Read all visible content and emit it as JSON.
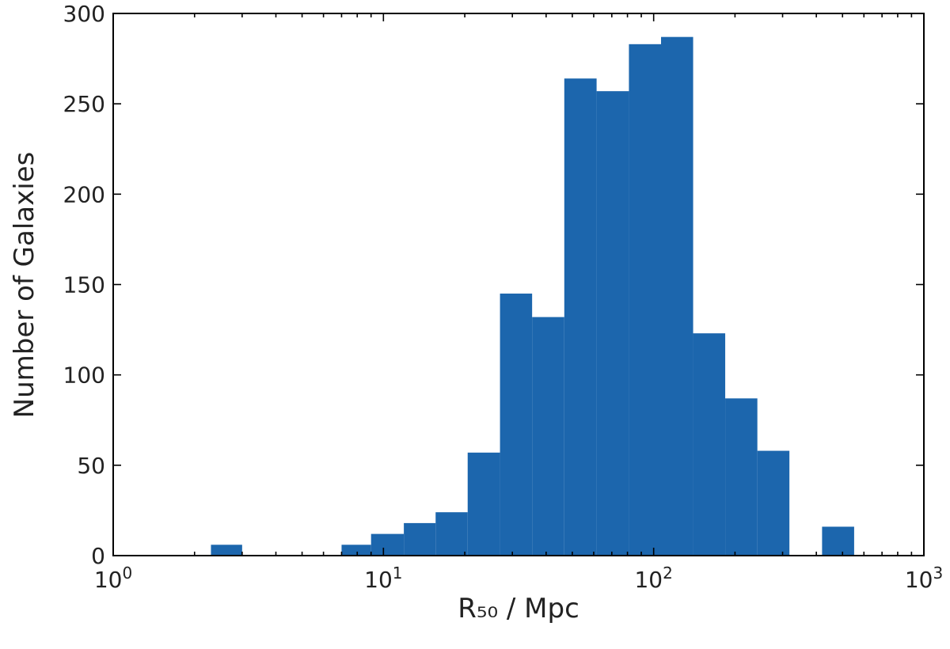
{
  "chart_data": {
    "type": "bar",
    "title": "",
    "xlabel": "R₅₀ / Mpc",
    "ylabel": "Number of Galaxies",
    "xscale": "log",
    "xlim": [
      1,
      1000
    ],
    "ylim": [
      0,
      300
    ],
    "grid": false,
    "bar_color": "#1c66ad",
    "x_ticks": [
      {
        "value": 1,
        "base": "10",
        "exp": "0"
      },
      {
        "value": 10,
        "base": "10",
        "exp": "1"
      },
      {
        "value": 100,
        "base": "10",
        "exp": "2"
      },
      {
        "value": 1000,
        "base": "10",
        "exp": "3"
      }
    ],
    "y_ticks": [
      0,
      50,
      100,
      150,
      200,
      250,
      300
    ],
    "bins": [
      {
        "x0": 2.3,
        "x1": 3.0,
        "count": 6
      },
      {
        "x0": 7.0,
        "x1": 9.0,
        "count": 6
      },
      {
        "x0": 9.0,
        "x1": 11.9,
        "count": 12
      },
      {
        "x0": 11.9,
        "x1": 15.6,
        "count": 18
      },
      {
        "x0": 15.6,
        "x1": 20.5,
        "count": 24
      },
      {
        "x0": 20.5,
        "x1": 27.0,
        "count": 57
      },
      {
        "x0": 27.0,
        "x1": 35.5,
        "count": 145
      },
      {
        "x0": 35.5,
        "x1": 46.7,
        "count": 132
      },
      {
        "x0": 46.7,
        "x1": 61.5,
        "count": 264
      },
      {
        "x0": 61.5,
        "x1": 81.0,
        "count": 257
      },
      {
        "x0": 81.0,
        "x1": 106.5,
        "count": 283
      },
      {
        "x0": 106.5,
        "x1": 140.0,
        "count": 287
      },
      {
        "x0": 140.0,
        "x1": 184.0,
        "count": 123
      },
      {
        "x0": 184.0,
        "x1": 242.0,
        "count": 87
      },
      {
        "x0": 242.0,
        "x1": 318.0,
        "count": 58
      },
      {
        "x0": 420.0,
        "x1": 552.0,
        "count": 16
      }
    ]
  }
}
